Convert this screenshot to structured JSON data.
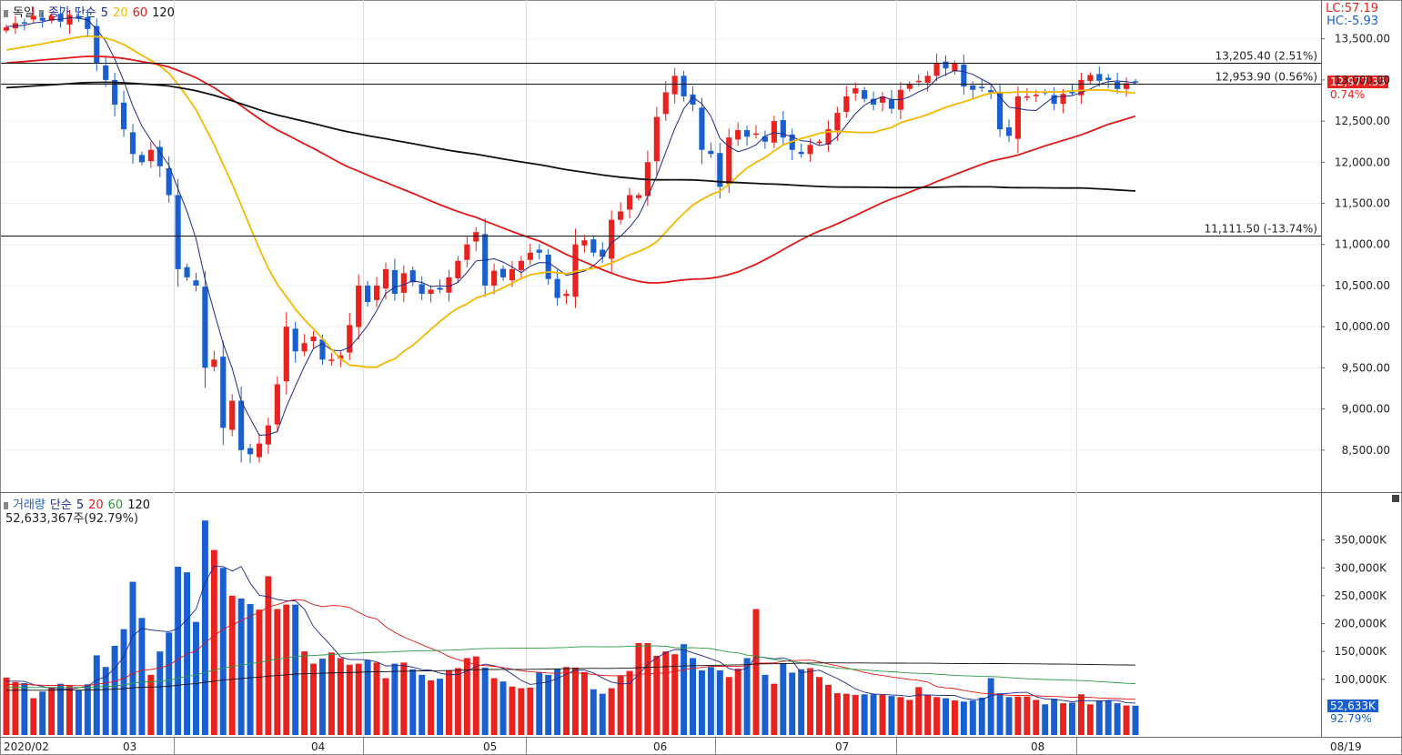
{
  "header": {
    "symbol": "독일",
    "price_label": "종가",
    "ma_type": "단순",
    "ma_periods": [
      "5",
      "20",
      "60",
      "120"
    ]
  },
  "volume_header": {
    "title": "거래량",
    "ma_type": "단순",
    "ma_periods": [
      "5",
      "20",
      "60",
      "120"
    ],
    "value_text": "52,633,367주(92.79%)"
  },
  "lc_text": "LC:57.19",
  "hc_text": "HC:-5.93",
  "current_price_badge": "12,977.33",
  "current_change_text": "0.74%",
  "volume_badge": "52,633K",
  "volume_pct_text": "92.79%",
  "x_labels": [
    "2020/02",
    "03",
    "04",
    "05",
    "06",
    "07",
    "08",
    "08/19"
  ],
  "colors": {
    "up": "#e8221e",
    "down": "#1a5fd0",
    "ma5": "#1c2a8c",
    "ma20": "#f5b800",
    "ma60": "#e01818",
    "ma120": "#111111",
    "vma60": "#2a9a44",
    "accent": "#1a5fd0"
  },
  "chart_data": [
    {
      "type": "candlestick",
      "title": "",
      "ylim": [
        8000,
        13950
      ],
      "y_ticks": [
        "8,500.00",
        "9,000.00",
        "9,500.00",
        "10,000.00",
        "10,500.00",
        "11,000.00",
        "11,500.00",
        "12,000.00",
        "12,500.00",
        "13,000.00",
        "13,500.00"
      ],
      "y_tick_values": [
        8500,
        9000,
        9500,
        10000,
        10500,
        11000,
        11500,
        12000,
        12500,
        13000,
        13500
      ],
      "hlines": [
        {
          "value": 13205.4,
          "label": "13,205.40 (2.51%)"
        },
        {
          "value": 12953.9,
          "label": "12,953.90 (0.56%)"
        },
        {
          "value": 11111.5,
          "label": "11,111.50 (-13.74%)"
        }
      ],
      "closes": [
        13640,
        13690,
        13700,
        13780,
        13720,
        13780,
        13710,
        13790,
        13750,
        13620,
        13200,
        13000,
        12700,
        12400,
        12100,
        12000,
        12150,
        11950,
        11600,
        10700,
        10600,
        10500,
        9500,
        9600,
        8770,
        9100,
        8500,
        8450,
        8580,
        8800,
        9300,
        10000,
        9700,
        9800,
        9880,
        9600,
        9600,
        9650,
        10020,
        10500,
        10300,
        10500,
        10700,
        10400,
        10650,
        10540,
        10400,
        10450,
        10450,
        10600,
        10800,
        11000,
        11150,
        10500,
        10680,
        10600,
        10700,
        10800,
        10900,
        10900,
        10580,
        10350,
        10400,
        11000,
        11050,
        10900,
        10850,
        11300,
        11400,
        11600,
        11600,
        12000,
        12550,
        12850,
        13050,
        12800,
        12700,
        12150,
        12100,
        11700,
        12300,
        12390,
        12310,
        12350,
        12250,
        12500,
        12300,
        12150,
        12100,
        12210,
        12250,
        12400,
        12600,
        12800,
        12900,
        12770,
        12700,
        12800,
        12650,
        12880,
        12950,
        12990,
        13050,
        13200,
        13140,
        13200,
        12920,
        12880,
        12900,
        12850,
        12400,
        12320,
        12800,
        12800,
        12820,
        12840,
        12710,
        12830,
        12850,
        13000,
        13060,
        12990,
        13000,
        12890,
        12960,
        12977.33
      ],
      "ma_windows": [
        5,
        20,
        60,
        120
      ],
      "ma_names": [
        "5",
        "20",
        "60",
        "120"
      ],
      "x_tick_labels": [
        "2020/02",
        "03",
        "04",
        "05",
        "06",
        "07",
        "08",
        "08/19"
      ]
    },
    {
      "type": "bar",
      "title": "거래량",
      "ylim": [
        0,
        400000
      ],
      "units": "K",
      "y_ticks": [
        "100,000K",
        "150,000K",
        "200,000K",
        "250,000K",
        "300,000K",
        "350,000K"
      ],
      "y_tick_values": [
        100000,
        150000,
        200000,
        250000,
        300000,
        350000
      ],
      "values": [
        103000,
        95000,
        93000,
        66000,
        78000,
        86000,
        92000,
        88000,
        80000,
        91000,
        143000,
        122000,
        160000,
        190000,
        275000,
        210000,
        108000,
        150000,
        184000,
        302000,
        292000,
        203000,
        385000,
        332000,
        300000,
        250000,
        245000,
        235000,
        225000,
        285000,
        226000,
        234000,
        234000,
        150000,
        128000,
        137000,
        148000,
        138000,
        126000,
        128000,
        134000,
        130000,
        102000,
        128000,
        130000,
        118000,
        108000,
        98000,
        101000,
        116000,
        120000,
        138000,
        141000,
        121000,
        102000,
        96000,
        87000,
        84000,
        85000,
        112000,
        108000,
        119000,
        122000,
        121000,
        113000,
        82000,
        74000,
        84000,
        106000,
        115000,
        165000,
        165000,
        142000,
        150000,
        145000,
        163000,
        138000,
        116000,
        122000,
        116000,
        104000,
        119000,
        138000,
        226000,
        108000,
        92000,
        128000,
        112000,
        118000,
        120000,
        104000,
        90000,
        75000,
        74000,
        72000,
        73000,
        73000,
        72000,
        70000,
        68000,
        63000,
        86000,
        72000,
        68000,
        66000,
        62000,
        60000,
        62000,
        67000,
        102000,
        75000,
        68000,
        69000,
        69000,
        63000,
        55000,
        65000,
        57000,
        58000,
        73000,
        55000,
        62000,
        62000,
        57000,
        53000,
        52633
      ]
    }
  ]
}
